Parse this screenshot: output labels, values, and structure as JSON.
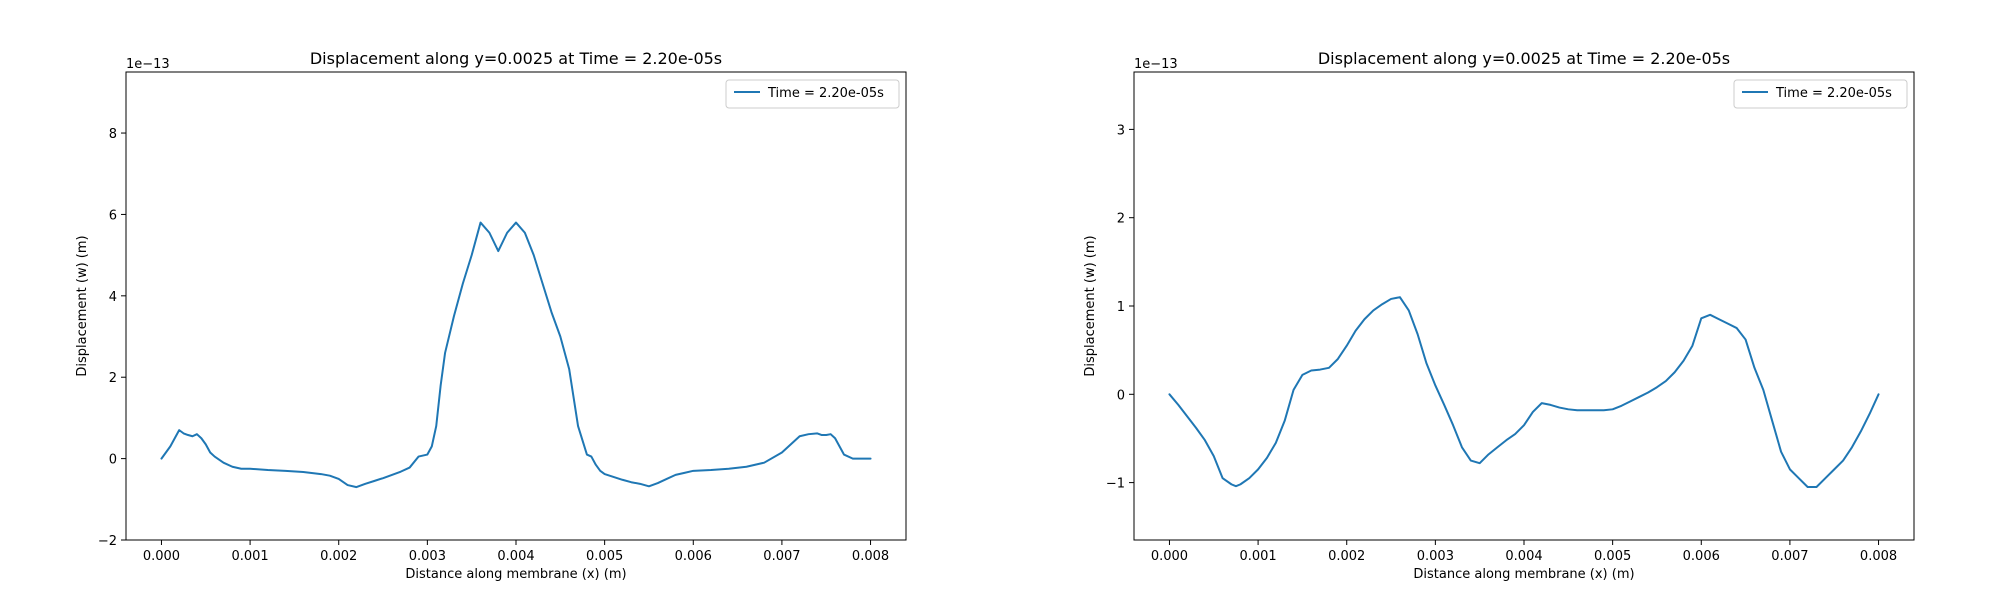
{
  "chart_data": [
    {
      "type": "line",
      "title": "Displacement along y=0.0025 at Time = 2.20e-05s",
      "xlabel": "Distance along membrane (x) (m)",
      "ylabel": "Displacement (w) (m)",
      "y_offset_label": "1e−13",
      "xlim": [
        -0.0004,
        0.0084
      ],
      "ylim": [
        -2,
        9.5
      ],
      "xticks": [
        0,
        0.001,
        0.002,
        0.003,
        0.004,
        0.005,
        0.006,
        0.007,
        0.008
      ],
      "xtick_labels": [
        "0.000",
        "0.001",
        "0.002",
        "0.003",
        "0.004",
        "0.005",
        "0.006",
        "0.007",
        "0.008"
      ],
      "yticks": [
        -2,
        0,
        2,
        4,
        6,
        8
      ],
      "ytick_labels": [
        "−2",
        "0",
        "2",
        "4",
        "6",
        "8"
      ],
      "grid": false,
      "legend_position": "top-right",
      "series": [
        {
          "name": "Time = 2.20e-05s",
          "color": "#1f77b4",
          "x": [
            0,
            0.0001,
            0.0002,
            0.00025,
            0.0003,
            0.00035,
            0.0004,
            0.00045,
            0.0005,
            0.00055,
            0.0006,
            0.0007,
            0.0008,
            0.0009,
            0.001,
            0.0012,
            0.0014,
            0.0016,
            0.0018,
            0.0019,
            0.002,
            0.0021,
            0.0022,
            0.0023,
            0.0024,
            0.0025,
            0.0026,
            0.0027,
            0.0028,
            0.0029,
            0.003,
            0.00305,
            0.0031,
            0.00315,
            0.0032,
            0.0033,
            0.0034,
            0.0035,
            0.0036,
            0.0037,
            0.0038,
            0.0039,
            0.004,
            0.0041,
            0.0042,
            0.0043,
            0.0044,
            0.0045,
            0.0046,
            0.0047,
            0.0048,
            0.00485,
            0.0049,
            0.00495,
            0.005,
            0.0051,
            0.0052,
            0.0053,
            0.0054,
            0.0055,
            0.0056,
            0.0057,
            0.0058,
            0.0059,
            0.006,
            0.0062,
            0.0064,
            0.0066,
            0.0068,
            0.007,
            0.0071,
            0.0072,
            0.0073,
            0.0074,
            0.00745,
            0.0075,
            0.00755,
            0.0076,
            0.00765,
            0.0077,
            0.0078,
            0.0079,
            0.008
          ],
          "y": [
            0,
            0.3,
            0.7,
            0.62,
            0.58,
            0.55,
            0.6,
            0.5,
            0.35,
            0.15,
            0.05,
            -0.1,
            -0.2,
            -0.25,
            -0.25,
            -0.28,
            -0.3,
            -0.33,
            -0.38,
            -0.42,
            -0.5,
            -0.65,
            -0.7,
            -0.62,
            -0.55,
            -0.48,
            -0.4,
            -0.32,
            -0.22,
            0.05,
            0.1,
            0.3,
            0.8,
            1.8,
            2.6,
            3.5,
            4.3,
            5.0,
            5.8,
            5.55,
            5.1,
            5.55,
            5.8,
            5.55,
            5.0,
            4.3,
            3.6,
            3.0,
            2.2,
            0.8,
            0.1,
            0.05,
            -0.15,
            -0.3,
            -0.38,
            -0.45,
            -0.52,
            -0.58,
            -0.62,
            -0.68,
            -0.6,
            -0.5,
            -0.4,
            -0.35,
            -0.3,
            -0.28,
            -0.25,
            -0.2,
            -0.1,
            0.15,
            0.35,
            0.55,
            0.6,
            0.62,
            0.58,
            0.58,
            0.6,
            0.5,
            0.3,
            0.1,
            0.0,
            0,
            0
          ]
        }
      ]
    },
    {
      "type": "line",
      "title": "Displacement along y=0.0025 at Time = 2.20e-05s",
      "xlabel": "Distance along membrane (x) (m)",
      "ylabel": "Displacement (w) (m)",
      "y_offset_label": "1e−13",
      "xlim": [
        -0.0004,
        0.0084
      ],
      "ylim": [
        -1.65,
        3.65
      ],
      "xticks": [
        0,
        0.001,
        0.002,
        0.003,
        0.004,
        0.005,
        0.006,
        0.007,
        0.008
      ],
      "xtick_labels": [
        "0.000",
        "0.001",
        "0.002",
        "0.003",
        "0.004",
        "0.005",
        "0.006",
        "0.007",
        "0.008"
      ],
      "yticks": [
        -1,
        0,
        1,
        2,
        3
      ],
      "ytick_labels": [
        "−1",
        "0",
        "1",
        "2",
        "3"
      ],
      "grid": false,
      "legend_position": "top-right",
      "series": [
        {
          "name": "Time = 2.20e-05s",
          "color": "#1f77b4",
          "x": [
            0,
            0.0001,
            0.0002,
            0.0003,
            0.0004,
            0.0005,
            0.0006,
            0.0007,
            0.00075,
            0.0008,
            0.0009,
            0.001,
            0.0011,
            0.0012,
            0.0013,
            0.0014,
            0.0015,
            0.0016,
            0.0017,
            0.0018,
            0.0019,
            0.002,
            0.0021,
            0.0022,
            0.0023,
            0.0024,
            0.0025,
            0.0026,
            0.0027,
            0.0028,
            0.0029,
            0.003,
            0.0031,
            0.0032,
            0.0033,
            0.0034,
            0.0035,
            0.0036,
            0.0037,
            0.0038,
            0.0039,
            0.004,
            0.0041,
            0.0042,
            0.0043,
            0.0044,
            0.0045,
            0.0046,
            0.0047,
            0.0048,
            0.0049,
            0.005,
            0.0051,
            0.0052,
            0.0053,
            0.0054,
            0.0055,
            0.0056,
            0.0057,
            0.0058,
            0.0059,
            0.006,
            0.0061,
            0.0062,
            0.0063,
            0.0064,
            0.0065,
            0.0066,
            0.0067,
            0.0068,
            0.0069,
            0.007,
            0.0071,
            0.0072,
            0.0073,
            0.0074,
            0.0075,
            0.0076,
            0.0077,
            0.0078,
            0.0079,
            0.008
          ],
          "y": [
            0,
            -0.12,
            -0.25,
            -0.38,
            -0.52,
            -0.7,
            -0.95,
            -1.02,
            -1.04,
            -1.02,
            -0.95,
            -0.85,
            -0.72,
            -0.55,
            -0.3,
            0.05,
            0.22,
            0.27,
            0.28,
            0.3,
            0.4,
            0.55,
            0.72,
            0.85,
            0.95,
            1.02,
            1.08,
            1.1,
            0.95,
            0.68,
            0.35,
            0.1,
            -0.12,
            -0.35,
            -0.6,
            -0.75,
            -0.78,
            -0.68,
            -0.6,
            -0.52,
            -0.45,
            -0.35,
            -0.2,
            -0.1,
            -0.12,
            -0.15,
            -0.17,
            -0.18,
            -0.18,
            -0.18,
            -0.18,
            -0.17,
            -0.13,
            -0.08,
            -0.03,
            0.02,
            0.08,
            0.15,
            0.25,
            0.38,
            0.55,
            0.86,
            0.9,
            0.85,
            0.8,
            0.75,
            0.62,
            0.3,
            0.05,
            -0.3,
            -0.65,
            -0.85,
            -0.95,
            -1.05,
            -1.05,
            -0.95,
            -0.85,
            -0.75,
            -0.6,
            -0.42,
            -0.22,
            0
          ]
        }
      ]
    }
  ]
}
